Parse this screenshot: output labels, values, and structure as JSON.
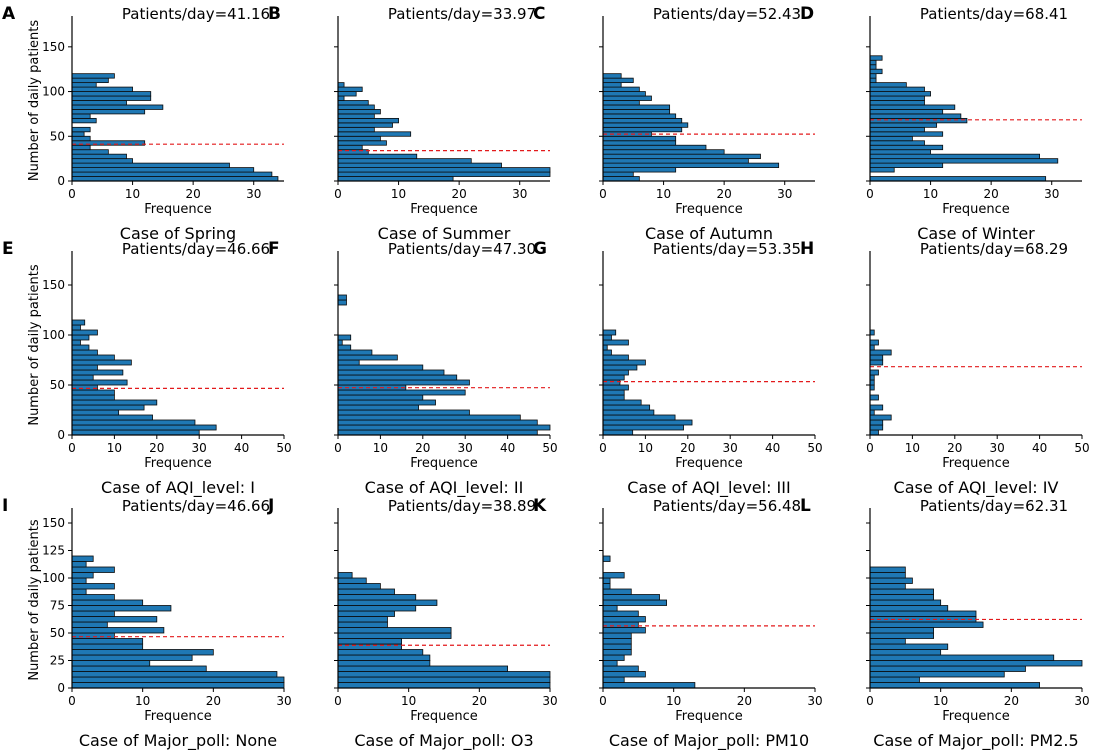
{
  "figure": {
    "ylabel": "Number of daily patients",
    "xlabel": "Frequence"
  },
  "chart_data": [
    {
      "type": "bar",
      "orientation": "horizontal",
      "panel": "A",
      "title": "Case of Spring",
      "annotation": "Patients/day=41.16",
      "mean": 41.16,
      "xlim": [
        0,
        35
      ],
      "xticks": [
        0,
        10,
        20,
        30
      ],
      "ylim": [
        0,
        180
      ],
      "yticks": [
        0,
        50,
        100,
        150
      ],
      "show_y_ticklabels": true,
      "bin_start": 0,
      "bin_width": 5,
      "values": [
        34,
        33,
        30,
        26,
        10,
        9,
        6,
        3,
        12,
        3,
        2,
        3,
        0,
        4,
        3,
        12,
        15,
        9,
        13,
        13,
        10,
        4,
        6,
        7
      ]
    },
    {
      "type": "bar",
      "orientation": "horizontal",
      "panel": "B",
      "title": "Case of Summer",
      "annotation": "Patients/day=33.97",
      "mean": 33.97,
      "xlim": [
        0,
        35
      ],
      "xticks": [
        0,
        10,
        20,
        30
      ],
      "ylim": [
        0,
        180
      ],
      "yticks": [
        0,
        50,
        100,
        150
      ],
      "show_y_ticklabels": false,
      "bin_start": 0,
      "bin_width": 5,
      "values": [
        19,
        35,
        35,
        27,
        22,
        13,
        5,
        4,
        8,
        7,
        12,
        6,
        9,
        10,
        6,
        7,
        6,
        5,
        1,
        3,
        4,
        1
      ]
    },
    {
      "type": "bar",
      "orientation": "horizontal",
      "panel": "C",
      "title": "Case of Autumn",
      "annotation": "Patients/day=52.43",
      "mean": 52.43,
      "xlim": [
        0,
        35
      ],
      "xticks": [
        0,
        10,
        20,
        30
      ],
      "ylim": [
        0,
        180
      ],
      "yticks": [
        0,
        50,
        100,
        150
      ],
      "show_y_ticklabels": false,
      "bin_start": 0,
      "bin_width": 5,
      "values": [
        6,
        5,
        12,
        29,
        24,
        26,
        20,
        17,
        12,
        12,
        8,
        13,
        14,
        13,
        12,
        11,
        11,
        6,
        8,
        7,
        6,
        3,
        5,
        3
      ]
    },
    {
      "type": "bar",
      "orientation": "horizontal",
      "panel": "D",
      "title": "Case of Winter",
      "annotation": "Patients/day=68.41",
      "mean": 68.41,
      "xlim": [
        0,
        35
      ],
      "xticks": [
        0,
        10,
        20,
        30
      ],
      "ylim": [
        0,
        180
      ],
      "yticks": [
        0,
        50,
        100,
        150
      ],
      "show_y_ticklabels": false,
      "bin_start": 0,
      "bin_width": 5,
      "values": [
        29,
        0,
        4,
        12,
        31,
        28,
        10,
        12,
        9,
        7,
        12,
        9,
        11,
        16,
        15,
        12,
        14,
        9,
        9,
        10,
        9,
        6,
        1,
        1,
        2,
        1,
        1,
        2
      ]
    },
    {
      "type": "bar",
      "orientation": "horizontal",
      "panel": "E",
      "title": "Case of AQI_level: I",
      "annotation": "Patients/day=46.66",
      "mean": 46.66,
      "xlim": [
        0,
        50
      ],
      "xticks": [
        0,
        10,
        20,
        30,
        40,
        50
      ],
      "ylim": [
        0,
        180
      ],
      "yticks": [
        0,
        50,
        100,
        150
      ],
      "show_y_ticklabels": true,
      "bin_start": 0,
      "bin_width": 5,
      "values": [
        30,
        34,
        29,
        19,
        11,
        17,
        20,
        10,
        10,
        6,
        13,
        5,
        12,
        6,
        14,
        10,
        6,
        4,
        2,
        4,
        6,
        2,
        3
      ]
    },
    {
      "type": "bar",
      "orientation": "horizontal",
      "panel": "F",
      "title": "Case of AQI_level: II",
      "annotation": "Patients/day=47.30",
      "mean": 47.3,
      "xlim": [
        0,
        50
      ],
      "xticks": [
        0,
        10,
        20,
        30,
        40,
        50
      ],
      "ylim": [
        0,
        180
      ],
      "yticks": [
        0,
        50,
        100,
        150
      ],
      "show_y_ticklabels": false,
      "bin_start": 0,
      "bin_width": 5,
      "values": [
        47,
        50,
        47,
        43,
        31,
        19,
        23,
        20,
        30,
        16,
        31,
        28,
        25,
        20,
        5,
        14,
        8,
        3,
        1,
        3,
        0,
        0,
        0,
        0,
        0,
        0,
        2,
        2
      ]
    },
    {
      "type": "bar",
      "orientation": "horizontal",
      "panel": "G",
      "title": "Case of AQI_level: III",
      "annotation": "Patients/day=53.35",
      "mean": 53.35,
      "xlim": [
        0,
        50
      ],
      "xticks": [
        0,
        10,
        20,
        30,
        40,
        50
      ],
      "ylim": [
        0,
        180
      ],
      "yticks": [
        0,
        50,
        100,
        150
      ],
      "show_y_ticklabels": false,
      "bin_start": 0,
      "bin_width": 5,
      "values": [
        7,
        19,
        21,
        17,
        12,
        11,
        9,
        5,
        5,
        6,
        4,
        5,
        6,
        8,
        10,
        6,
        2,
        1,
        6,
        2,
        3
      ]
    },
    {
      "type": "bar",
      "orientation": "horizontal",
      "panel": "H",
      "title": "Case of AQI_level: IV",
      "annotation": "Patients/day=68.29",
      "mean": 68.29,
      "xlim": [
        0,
        50
      ],
      "xticks": [
        0,
        10,
        20,
        30,
        40,
        50
      ],
      "ylim": [
        0,
        180
      ],
      "yticks": [
        0,
        50,
        100,
        150
      ],
      "show_y_ticklabels": false,
      "bin_start": 0,
      "bin_width": 5,
      "values": [
        2,
        3,
        3,
        5,
        1,
        3,
        0,
        2,
        0,
        1,
        1,
        1,
        2,
        0,
        3,
        3,
        5,
        1,
        2,
        0,
        1
      ]
    },
    {
      "type": "bar",
      "orientation": "horizontal",
      "panel": "I",
      "title": "Case of Major_poll: None",
      "annotation": "Patients/day=46.66",
      "mean": 46.66,
      "xlim": [
        0,
        30
      ],
      "xticks": [
        0,
        10,
        20,
        30
      ],
      "ylim": [
        0,
        160
      ],
      "yticks": [
        0,
        25,
        50,
        75,
        100,
        125,
        150
      ],
      "show_y_ticklabels": true,
      "bin_start": 0,
      "bin_width": 5,
      "values": [
        30,
        30,
        29,
        19,
        11,
        17,
        20,
        10,
        10,
        6,
        13,
        5,
        12,
        6,
        14,
        10,
        6,
        2,
        6,
        2,
        3,
        6,
        2,
        3
      ]
    },
    {
      "type": "bar",
      "orientation": "horizontal",
      "panel": "J",
      "title": "Case of Major_poll: O3",
      "annotation": "Patients/day=38.89",
      "mean": 38.89,
      "xlim": [
        0,
        30
      ],
      "xticks": [
        0,
        10,
        20,
        30
      ],
      "ylim": [
        0,
        160
      ],
      "yticks": [
        0,
        25,
        50,
        75,
        100,
        125,
        150
      ],
      "show_y_ticklabels": false,
      "bin_start": 0,
      "bin_width": 5,
      "values": [
        30,
        30,
        30,
        24,
        13,
        13,
        12,
        9,
        9,
        16,
        16,
        7,
        7,
        8,
        11,
        14,
        11,
        8,
        6,
        4,
        2
      ]
    },
    {
      "type": "bar",
      "orientation": "horizontal",
      "panel": "K",
      "title": "Case of Major_poll: PM10",
      "annotation": "Patients/day=56.48",
      "mean": 56.48,
      "xlim": [
        0,
        30
      ],
      "xticks": [
        0,
        10,
        20,
        30
      ],
      "ylim": [
        0,
        160
      ],
      "yticks": [
        0,
        25,
        50,
        75,
        100,
        125,
        150
      ],
      "show_y_ticklabels": false,
      "bin_start": 0,
      "bin_width": 5,
      "values": [
        13,
        3,
        6,
        5,
        2,
        3,
        4,
        4,
        4,
        4,
        6,
        5,
        6,
        5,
        2,
        9,
        8,
        4,
        1,
        1,
        3,
        0,
        0,
        1
      ]
    },
    {
      "type": "bar",
      "orientation": "horizontal",
      "panel": "L",
      "title": "Case of Major_poll: PM2.5",
      "annotation": "Patients/day=62.31",
      "mean": 62.31,
      "xlim": [
        0,
        30
      ],
      "xticks": [
        0,
        10,
        20,
        30
      ],
      "ylim": [
        0,
        160
      ],
      "yticks": [
        0,
        25,
        50,
        75,
        100,
        125,
        150
      ],
      "show_y_ticklabels": false,
      "bin_start": 0,
      "bin_width": 5,
      "values": [
        24,
        7,
        19,
        22,
        30,
        26,
        10,
        11,
        5,
        9,
        9,
        16,
        15,
        15,
        11,
        10,
        9,
        9,
        5,
        6,
        5,
        5
      ]
    }
  ]
}
